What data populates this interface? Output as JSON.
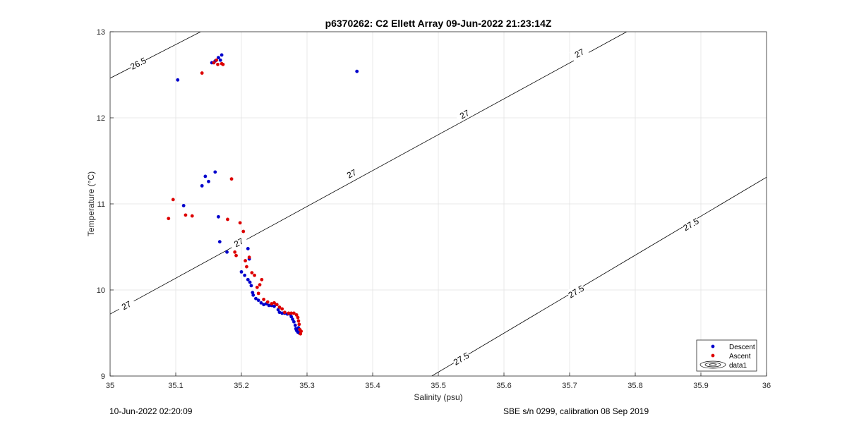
{
  "chart_data": {
    "type": "scatter",
    "title": "p6370262: C2 Ellett Array 09-Jun-2022 21:23:14Z",
    "xlabel": "Salinity (psu)",
    "ylabel": "Temperature (°C)",
    "xlim": [
      35,
      36
    ],
    "ylim": [
      9,
      13
    ],
    "xticks": [
      "35",
      "35.1",
      "35.2",
      "35.3",
      "35.4",
      "35.5",
      "35.6",
      "35.7",
      "35.8",
      "35.9",
      "36"
    ],
    "yticks": [
      "9",
      "10",
      "11",
      "12",
      "13"
    ],
    "grid": true,
    "legend_position": "bottom-right",
    "series": [
      {
        "name": "Descent",
        "color": "#0000cc",
        "points": [
          [
            35.103,
            12.44
          ],
          [
            35.376,
            12.54
          ],
          [
            35.155,
            12.64
          ],
          [
            35.16,
            12.66
          ],
          [
            35.165,
            12.7
          ],
          [
            35.168,
            12.67
          ],
          [
            35.17,
            12.73
          ],
          [
            35.112,
            10.98
          ],
          [
            35.14,
            11.21
          ],
          [
            35.145,
            11.32
          ],
          [
            35.15,
            11.26
          ],
          [
            35.16,
            11.37
          ],
          [
            35.165,
            10.85
          ],
          [
            35.167,
            10.56
          ],
          [
            35.178,
            10.44
          ],
          [
            35.2,
            10.21
          ],
          [
            35.205,
            10.17
          ],
          [
            35.21,
            10.48
          ],
          [
            35.212,
            10.36
          ],
          [
            35.21,
            10.12
          ],
          [
            35.213,
            10.09
          ],
          [
            35.215,
            10.05
          ],
          [
            35.217,
            9.97
          ],
          [
            35.218,
            9.94
          ],
          [
            35.222,
            9.9
          ],
          [
            35.226,
            9.88
          ],
          [
            35.23,
            9.85
          ],
          [
            35.234,
            9.83
          ],
          [
            35.238,
            9.84
          ],
          [
            35.242,
            9.82
          ],
          [
            35.246,
            9.82
          ],
          [
            35.25,
            9.81
          ],
          [
            35.254,
            9.83
          ],
          [
            35.256,
            9.77
          ],
          [
            35.258,
            9.74
          ],
          [
            35.262,
            9.73
          ],
          [
            35.266,
            9.73
          ],
          [
            35.27,
            9.72
          ],
          [
            35.274,
            9.72
          ],
          [
            35.276,
            9.69
          ],
          [
            35.278,
            9.66
          ],
          [
            35.28,
            9.63
          ],
          [
            35.282,
            9.59
          ],
          [
            35.283,
            9.55
          ],
          [
            35.284,
            9.53
          ],
          [
            35.286,
            9.51
          ],
          [
            35.287,
            9.56
          ],
          [
            35.288,
            9.5
          ]
        ]
      },
      {
        "name": "Ascent",
        "color": "#dd0000",
        "points": [
          [
            35.14,
            12.52
          ],
          [
            35.158,
            12.64
          ],
          [
            35.162,
            12.67
          ],
          [
            35.164,
            12.62
          ],
          [
            35.17,
            12.63
          ],
          [
            35.172,
            12.62
          ],
          [
            35.089,
            10.83
          ],
          [
            35.096,
            11.05
          ],
          [
            35.115,
            10.87
          ],
          [
            35.125,
            10.86
          ],
          [
            35.179,
            10.82
          ],
          [
            35.185,
            11.29
          ],
          [
            35.19,
            10.44
          ],
          [
            35.192,
            10.4
          ],
          [
            35.198,
            10.78
          ],
          [
            35.203,
            10.68
          ],
          [
            35.206,
            10.34
          ],
          [
            35.208,
            10.27
          ],
          [
            35.212,
            10.38
          ],
          [
            35.216,
            10.2
          ],
          [
            35.22,
            10.17
          ],
          [
            35.224,
            10.03
          ],
          [
            35.226,
            9.96
          ],
          [
            35.228,
            10.06
          ],
          [
            35.231,
            10.12
          ],
          [
            35.234,
            9.89
          ],
          [
            35.24,
            9.86
          ],
          [
            35.246,
            9.84
          ],
          [
            35.25,
            9.85
          ],
          [
            35.254,
            9.83
          ],
          [
            35.258,
            9.8
          ],
          [
            35.262,
            9.78
          ],
          [
            35.266,
            9.74
          ],
          [
            35.272,
            9.73
          ],
          [
            35.276,
            9.73
          ],
          [
            35.28,
            9.73
          ],
          [
            35.284,
            9.71
          ],
          [
            35.286,
            9.68
          ],
          [
            35.287,
            9.64
          ],
          [
            35.288,
            9.6
          ],
          [
            35.289,
            9.54
          ],
          [
            35.29,
            9.49
          ],
          [
            35.291,
            9.52
          ]
        ]
      }
    ],
    "contours": [
      {
        "label": "26.5",
        "points": [
          [
            35.0,
            12.46
          ],
          [
            35.138,
            13.0
          ]
        ],
        "label_at": [
          [
            35.043,
            12.63
          ]
        ]
      },
      {
        "label": "27",
        "points": [
          [
            35.0,
            9.72
          ],
          [
            35.787,
            13.0
          ]
        ],
        "label_at": [
          [
            35.025,
            9.82
          ],
          [
            35.196,
            10.55
          ],
          [
            35.368,
            11.35
          ],
          [
            35.54,
            12.04
          ],
          [
            35.715,
            12.75
          ]
        ]
      },
      {
        "label": "27.5",
        "points": [
          [
            35.49,
            9.0
          ],
          [
            36.0,
            11.31
          ]
        ],
        "label_at": [
          [
            35.535,
            9.2
          ],
          [
            35.71,
            9.98
          ],
          [
            35.885,
            10.76
          ]
        ]
      }
    ],
    "extra_legend_entry": "data1"
  },
  "footer": {
    "date": "10-Jun-2022 02:20:09",
    "calibration": "SBE s/n 0299, calibration 08 Sep 2019"
  }
}
